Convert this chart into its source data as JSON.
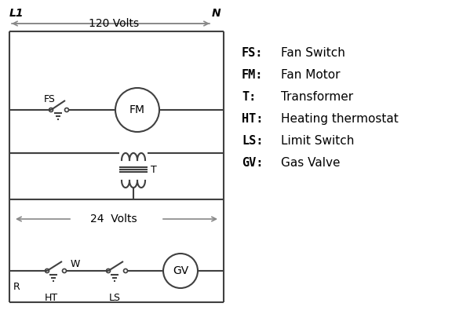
{
  "bg_color": "#ffffff",
  "line_color": "#404040",
  "arrow_color": "#888888",
  "text_color": "#000000",
  "legend_items": [
    [
      "FS:",
      "Fan Switch"
    ],
    [
      "FM:",
      "Fan Motor"
    ],
    [
      "T:",
      "Transformer"
    ],
    [
      "HT:",
      "Heating thermostat"
    ],
    [
      "LS:",
      "Limit Switch"
    ],
    [
      "GV:",
      "Gas Valve"
    ]
  ],
  "label_L1": "L1",
  "label_N": "N",
  "label_120V": "120 Volts",
  "label_24V": "24  Volts",
  "label_T": "T",
  "label_FS": "FS",
  "label_FM": "FM",
  "label_GV": "GV",
  "label_R": "R",
  "label_W": "W",
  "label_HT": "HT",
  "label_LS": "LS"
}
